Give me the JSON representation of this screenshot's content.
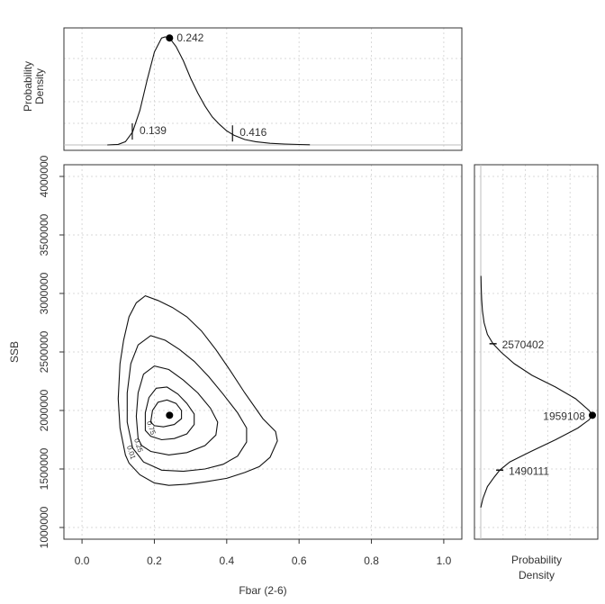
{
  "chart_data": [
    {
      "panel": "top-marginal",
      "type": "line",
      "ylabel": [
        "Probability",
        "Density"
      ],
      "curve": {
        "x": [
          0.07,
          0.1,
          0.12,
          0.14,
          0.16,
          0.18,
          0.2,
          0.22,
          0.23,
          0.242,
          0.26,
          0.28,
          0.3,
          0.32,
          0.34,
          0.36,
          0.38,
          0.4,
          0.42,
          0.45,
          0.48,
          0.52,
          0.56,
          0.6,
          0.63
        ],
        "y": [
          0.0,
          0.005,
          0.03,
          0.12,
          0.32,
          0.6,
          0.86,
          0.99,
          1.0,
          0.99,
          0.91,
          0.78,
          0.62,
          0.48,
          0.36,
          0.26,
          0.19,
          0.13,
          0.09,
          0.05,
          0.03,
          0.015,
          0.008,
          0.004,
          0.002
        ]
      },
      "markers": [
        {
          "type": "point",
          "x": 0.242,
          "label": "0.242"
        },
        {
          "type": "tick",
          "x": 0.139,
          "label": "0.139"
        },
        {
          "type": "tick",
          "x": 0.416,
          "label": "0.416"
        }
      ]
    },
    {
      "panel": "main",
      "type": "contour",
      "xlabel": "Fbar (2-6)",
      "ylabel": "SSB",
      "xlim": [
        -0.05,
        1.05
      ],
      "ylim": [
        900000,
        4100000
      ],
      "xticks": [
        "0.0",
        "0.2",
        "0.4",
        "0.6",
        "0.8",
        "1.0"
      ],
      "yticks": [
        "1000000",
        "1500000",
        "2000000",
        "2500000",
        "3000000",
        "3500000",
        "4000000"
      ],
      "grid": true,
      "point": {
        "x": 0.242,
        "y": 1959108
      },
      "contours": [
        {
          "level": "0.01",
          "labelled": true,
          "points": [
            [
              0.12,
              1620000
            ],
            [
              0.105,
              1850000
            ],
            [
              0.1,
              2100000
            ],
            [
              0.105,
              2400000
            ],
            [
              0.115,
              2600000
            ],
            [
              0.13,
              2800000
            ],
            [
              0.15,
              2920000
            ],
            [
              0.175,
              2980000
            ],
            [
              0.21,
              2940000
            ],
            [
              0.25,
              2880000
            ],
            [
              0.29,
              2800000
            ],
            [
              0.33,
              2680000
            ],
            [
              0.37,
              2520000
            ],
            [
              0.41,
              2340000
            ],
            [
              0.45,
              2150000
            ],
            [
              0.5,
              1930000
            ],
            [
              0.535,
              1820000
            ],
            [
              0.54,
              1740000
            ],
            [
              0.52,
              1600000
            ],
            [
              0.49,
              1520000
            ],
            [
              0.45,
              1470000
            ],
            [
              0.4,
              1420000
            ],
            [
              0.34,
              1390000
            ],
            [
              0.29,
              1370000
            ],
            [
              0.24,
              1360000
            ],
            [
              0.2,
              1380000
            ],
            [
              0.16,
              1450000
            ],
            [
              0.13,
              1550000
            ],
            [
              0.12,
              1620000
            ]
          ]
        },
        {
          "level": "0.25",
          "labelled": true,
          "points": [
            [
              0.14,
              1680000
            ],
            [
              0.125,
              1900000
            ],
            [
              0.125,
              2150000
            ],
            [
              0.135,
              2400000
            ],
            [
              0.155,
              2560000
            ],
            [
              0.19,
              2640000
            ],
            [
              0.23,
              2600000
            ],
            [
              0.27,
              2520000
            ],
            [
              0.31,
              2420000
            ],
            [
              0.35,
              2290000
            ],
            [
              0.39,
              2140000
            ],
            [
              0.43,
              1980000
            ],
            [
              0.455,
              1850000
            ],
            [
              0.455,
              1730000
            ],
            [
              0.43,
              1610000
            ],
            [
              0.39,
              1540000
            ],
            [
              0.34,
              1500000
            ],
            [
              0.28,
              1480000
            ],
            [
              0.22,
              1490000
            ],
            [
              0.17,
              1560000
            ],
            [
              0.14,
              1680000
            ]
          ]
        },
        {
          "level": "0.5",
          "labelled": false,
          "points": [
            [
              0.155,
              1760000
            ],
            [
              0.15,
              1950000
            ],
            [
              0.155,
              2150000
            ],
            [
              0.17,
              2310000
            ],
            [
              0.2,
              2380000
            ],
            [
              0.24,
              2350000
            ],
            [
              0.28,
              2260000
            ],
            [
              0.32,
              2150000
            ],
            [
              0.355,
              2020000
            ],
            [
              0.375,
              1900000
            ],
            [
              0.37,
              1790000
            ],
            [
              0.34,
              1700000
            ],
            [
              0.29,
              1640000
            ],
            [
              0.24,
              1620000
            ],
            [
              0.19,
              1650000
            ],
            [
              0.165,
              1700000
            ],
            [
              0.155,
              1760000
            ]
          ]
        },
        {
          "level": "0.75",
          "labelled": true,
          "points": [
            [
              0.175,
              1830000
            ],
            [
              0.175,
              1980000
            ],
            [
              0.185,
              2110000
            ],
            [
              0.205,
              2190000
            ],
            [
              0.235,
              2200000
            ],
            [
              0.265,
              2140000
            ],
            [
              0.29,
              2060000
            ],
            [
              0.31,
              1970000
            ],
            [
              0.31,
              1880000
            ],
            [
              0.29,
              1800000
            ],
            [
              0.255,
              1760000
            ],
            [
              0.22,
              1750000
            ],
            [
              0.19,
              1780000
            ],
            [
              0.175,
              1830000
            ]
          ]
        },
        {
          "level": "0.9",
          "labelled": false,
          "points": [
            [
              0.19,
              1900000
            ],
            [
              0.195,
              2000000
            ],
            [
              0.21,
              2070000
            ],
            [
              0.235,
              2090000
            ],
            [
              0.26,
              2060000
            ],
            [
              0.275,
              2000000
            ],
            [
              0.275,
              1930000
            ],
            [
              0.255,
              1880000
            ],
            [
              0.225,
              1860000
            ],
            [
              0.2,
              1870000
            ],
            [
              0.19,
              1900000
            ]
          ]
        }
      ]
    },
    {
      "panel": "right-marginal",
      "type": "line",
      "xlabel": [
        "Probability",
        "Density"
      ],
      "curve": {
        "y": [
          1170000,
          1250000,
          1350000,
          1430000,
          1490111,
          1560000,
          1650000,
          1750000,
          1850000,
          1920000,
          1959108,
          2000000,
          2100000,
          2200000,
          2300000,
          2400000,
          2500000,
          2570402,
          2650000,
          2750000,
          2850000,
          2950000,
          3050000,
          3150000
        ],
        "d": [
          0.0,
          0.02,
          0.06,
          0.12,
          0.17,
          0.26,
          0.45,
          0.67,
          0.87,
          0.97,
          1.0,
          0.97,
          0.85,
          0.67,
          0.46,
          0.3,
          0.18,
          0.11,
          0.06,
          0.03,
          0.015,
          0.008,
          0.004,
          0.002
        ]
      },
      "markers": [
        {
          "type": "point",
          "y": 1959108,
          "label": "1959108"
        },
        {
          "type": "tick",
          "y": 2570402,
          "label": "2570402"
        },
        {
          "type": "tick",
          "y": 1490111,
          "label": "1490111"
        }
      ]
    }
  ]
}
